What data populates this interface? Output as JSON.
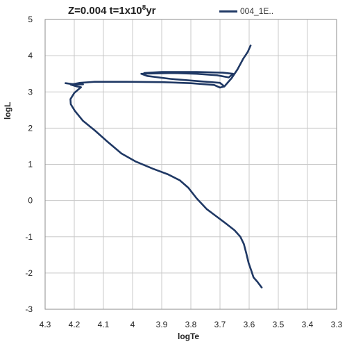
{
  "chart_data": {
    "type": "line",
    "title_main": "Z=0.004 t=1x10",
    "title_exp": "8",
    "title_end": "yr",
    "xlabel": "logTe",
    "ylabel": "logL",
    "xlim": [
      4.3,
      3.3
    ],
    "ylim": [
      -3,
      5
    ],
    "x_ticks": [
      "4.3",
      "4.2",
      "4.1",
      "4",
      "3.9",
      "3.8",
      "3.7",
      "3.6",
      "3.5",
      "3.4",
      "3.3"
    ],
    "y_ticks": [
      "5",
      "4",
      "3",
      "2",
      "1",
      "0",
      "-1",
      "-2",
      "-3"
    ],
    "grid": true,
    "legend_position": "top-right",
    "series": [
      {
        "name": "004_1E..",
        "color": "#1f3864",
        "points": [
          [
            3.557,
            -2.4
          ],
          [
            3.572,
            -2.24
          ],
          [
            3.585,
            -2.12
          ],
          [
            3.592,
            -1.95
          ],
          [
            3.602,
            -1.72
          ],
          [
            3.61,
            -1.45
          ],
          [
            3.618,
            -1.2
          ],
          [
            3.63,
            -1.0
          ],
          [
            3.65,
            -0.82
          ],
          [
            3.685,
            -0.6
          ],
          [
            3.715,
            -0.42
          ],
          [
            3.745,
            -0.24
          ],
          [
            3.78,
            0.06
          ],
          [
            3.808,
            0.35
          ],
          [
            3.838,
            0.56
          ],
          [
            3.88,
            0.73
          ],
          [
            3.93,
            0.88
          ],
          [
            3.99,
            1.08
          ],
          [
            4.038,
            1.3
          ],
          [
            4.085,
            1.62
          ],
          [
            4.13,
            1.94
          ],
          [
            4.17,
            2.2
          ],
          [
            4.198,
            2.48
          ],
          [
            4.212,
            2.66
          ],
          [
            4.213,
            2.8
          ],
          [
            4.2,
            2.97
          ],
          [
            4.177,
            3.13
          ],
          [
            4.192,
            3.15
          ],
          [
            4.212,
            3.2
          ],
          [
            4.18,
            3.25
          ],
          [
            4.13,
            3.28
          ],
          [
            4.02,
            3.28
          ],
          [
            3.9,
            3.27
          ],
          [
            3.8,
            3.24
          ],
          [
            3.72,
            3.19
          ],
          [
            3.7,
            3.12
          ],
          [
            3.685,
            3.15
          ],
          [
            3.66,
            3.38
          ],
          [
            3.64,
            3.62
          ],
          [
            3.62,
            3.92
          ],
          [
            3.605,
            4.1
          ],
          [
            3.595,
            4.28
          ]
        ]
      },
      {
        "name": "",
        "color": "#1f3864",
        "points": [
          [
            4.23,
            3.24
          ],
          [
            4.21,
            3.22
          ],
          [
            4.19,
            3.2
          ],
          [
            4.17,
            3.21
          ]
        ]
      },
      {
        "name": "",
        "color": "#1f3864",
        "points": [
          [
            3.685,
            3.15
          ],
          [
            3.7,
            3.25
          ],
          [
            3.78,
            3.3
          ],
          [
            3.87,
            3.36
          ],
          [
            3.95,
            3.44
          ],
          [
            3.97,
            3.5
          ],
          [
            3.93,
            3.51
          ],
          [
            3.86,
            3.52
          ],
          [
            3.78,
            3.5
          ],
          [
            3.71,
            3.46
          ],
          [
            3.67,
            3.4
          ],
          [
            3.655,
            3.5
          ],
          [
            3.69,
            3.53
          ],
          [
            3.78,
            3.55
          ],
          [
            3.9,
            3.55
          ],
          [
            3.96,
            3.52
          ]
        ]
      }
    ]
  }
}
